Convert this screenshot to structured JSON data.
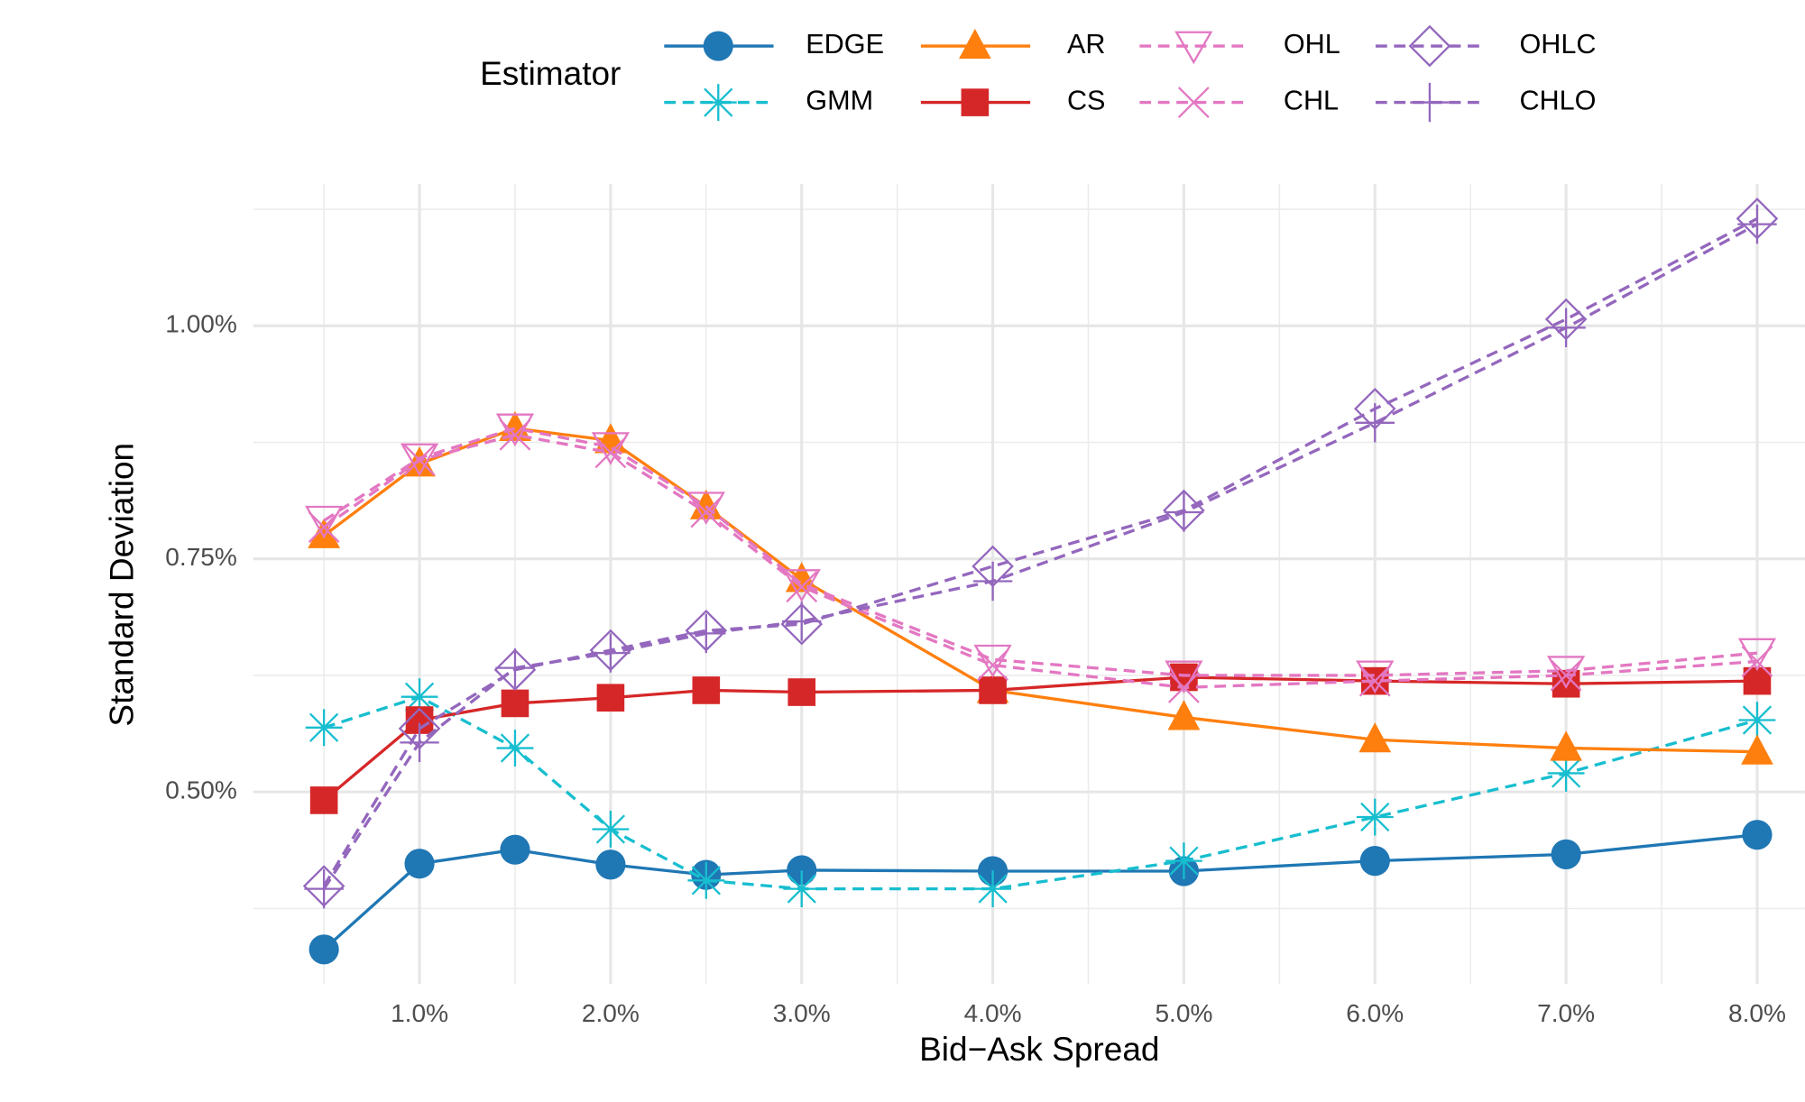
{
  "chart_data": {
    "type": "line",
    "x_label": "Bid−Ask Spread",
    "y_label": "Standard Deviation",
    "legend_title": "Estimator",
    "x": [
      0.5,
      1,
      1.5,
      2,
      2.5,
      3,
      4,
      5,
      6,
      7,
      8
    ],
    "xlim": [
      0.13,
      8.25
    ],
    "xticks": [
      {
        "value": 1,
        "label": "1.0%"
      },
      {
        "value": 2,
        "label": "2.0%"
      },
      {
        "value": 3,
        "label": "3.0%"
      },
      {
        "value": 4,
        "label": "4.0%"
      },
      {
        "value": 5,
        "label": "5.0%"
      },
      {
        "value": 6,
        "label": "6.0%"
      },
      {
        "value": 7,
        "label": "7.0%"
      },
      {
        "value": 8,
        "label": "8.0%"
      }
    ],
    "ylim": [
      0.294,
      1.152
    ],
    "yticks": [
      {
        "value": 0.5,
        "label": "0.50%"
      },
      {
        "value": 0.75,
        "label": "0.75%"
      },
      {
        "value": 1,
        "label": "1.00%"
      }
    ],
    "grid": true,
    "legend": "top",
    "series": [
      {
        "name": "EDGE",
        "color": "#1f77b4",
        "marker": "circle",
        "dash": false,
        "values": [
          0.331,
          0.423,
          0.438,
          0.422,
          0.411,
          0.416,
          0.415,
          0.415,
          0.426,
          0.433,
          0.454
        ]
      },
      {
        "name": "GMM",
        "color": "#17becf",
        "marker": "asterisk",
        "dash": true,
        "values": [
          0.569,
          0.602,
          0.547,
          0.46,
          0.405,
          0.396,
          0.396,
          0.426,
          0.473,
          0.52,
          0.577
        ]
      },
      {
        "name": "AR",
        "color": "#ff7f0e",
        "marker": "triangle",
        "dash": false,
        "values": [
          0.775,
          0.852,
          0.89,
          0.877,
          0.806,
          0.728,
          0.609,
          0.58,
          0.556,
          0.547,
          0.543
        ]
      },
      {
        "name": "CS",
        "color": "#d62728",
        "marker": "square",
        "dash": false,
        "values": [
          0.491,
          0.577,
          0.595,
          0.601,
          0.609,
          0.607,
          0.609,
          0.623,
          0.619,
          0.616,
          0.619
        ]
      },
      {
        "name": "OHL",
        "color": "#e377c2",
        "marker": "triangle-down-open",
        "dash": true,
        "values": [
          0.791,
          0.858,
          0.89,
          0.87,
          0.806,
          0.723,
          0.642,
          0.625,
          0.625,
          0.63,
          0.649
        ]
      },
      {
        "name": "CHL",
        "color": "#e377c2",
        "marker": "x",
        "dash": true,
        "values": [
          0.784,
          0.856,
          0.883,
          0.864,
          0.8,
          0.72,
          0.636,
          0.612,
          0.619,
          0.625,
          0.64
        ]
      },
      {
        "name": "OHLC",
        "color": "#9467bd",
        "marker": "diamond-open",
        "dash": true,
        "values": [
          0.399,
          0.568,
          0.631,
          0.652,
          0.673,
          0.68,
          0.742,
          0.802,
          0.911,
          1.007,
          1.115
        ]
      },
      {
        "name": "CHLO",
        "color": "#9467bd",
        "marker": "plus",
        "dash": true,
        "values": [
          0.396,
          0.553,
          0.633,
          0.649,
          0.67,
          0.683,
          0.726,
          0.8,
          0.896,
          0.998,
          1.109
        ]
      }
    ]
  }
}
